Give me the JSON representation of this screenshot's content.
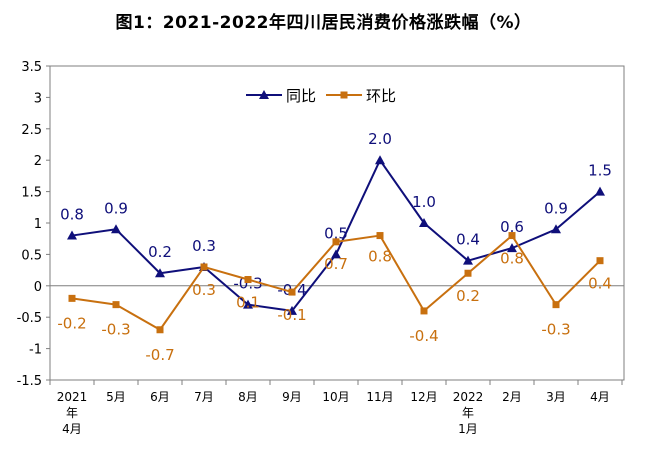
{
  "title": "图1：2021-2022年四川居民消费价格涨跌幅（%）",
  "chart_data": {
    "type": "line",
    "title": "图1：2021-2022年四川居民消费价格涨跌幅（%）",
    "categories": [
      [
        "2021",
        "年",
        "4月"
      ],
      [
        "5月"
      ],
      [
        "6月"
      ],
      [
        "7月"
      ],
      [
        "8月"
      ],
      [
        "9月"
      ],
      [
        "10月"
      ],
      [
        "11月"
      ],
      [
        "12月"
      ],
      [
        "2022",
        "年",
        "1月"
      ],
      [
        "2月"
      ],
      [
        "3月"
      ],
      [
        "4月"
      ]
    ],
    "ylim": [
      -1.5,
      3.5
    ],
    "yticks": [
      "3.5",
      "3",
      "2.5",
      "2",
      "1.5",
      "1",
      "0.5",
      "0",
      "-0.5",
      "-1",
      "-1.5"
    ],
    "ytick_values": [
      3.5,
      3,
      2.5,
      2,
      1.5,
      1,
      0.5,
      0,
      -0.5,
      -1,
      -1.5
    ],
    "grid": false,
    "legend_position": "top-center",
    "series": [
      {
        "name": "同比",
        "color": "#0f0f7a",
        "marker": "triangle",
        "values": [
          0.8,
          0.9,
          0.2,
          0.3,
          -0.3,
          -0.4,
          0.5,
          2.0,
          1.0,
          0.4,
          0.6,
          0.9,
          1.5
        ],
        "labels": [
          "0.8",
          "0.9",
          "0.2",
          "0.3",
          "-0.3",
          "-0.4",
          "0.5",
          "2.0",
          "1.0",
          "0.4",
          "0.6",
          "0.9",
          "1.5"
        ]
      },
      {
        "name": "环比",
        "color": "#c8700f",
        "marker": "square",
        "values": [
          -0.2,
          -0.3,
          -0.7,
          0.3,
          0.1,
          -0.1,
          0.7,
          0.8,
          -0.4,
          0.2,
          0.8,
          -0.3,
          0.4
        ],
        "labels": [
          "-0.2",
          "-0.3",
          "-0.7",
          "0.3",
          "0.1",
          "-0.1",
          "0.7",
          "0.8",
          "-0.4",
          "0.2",
          "0.8",
          "-0.3",
          "0.4"
        ]
      }
    ]
  }
}
